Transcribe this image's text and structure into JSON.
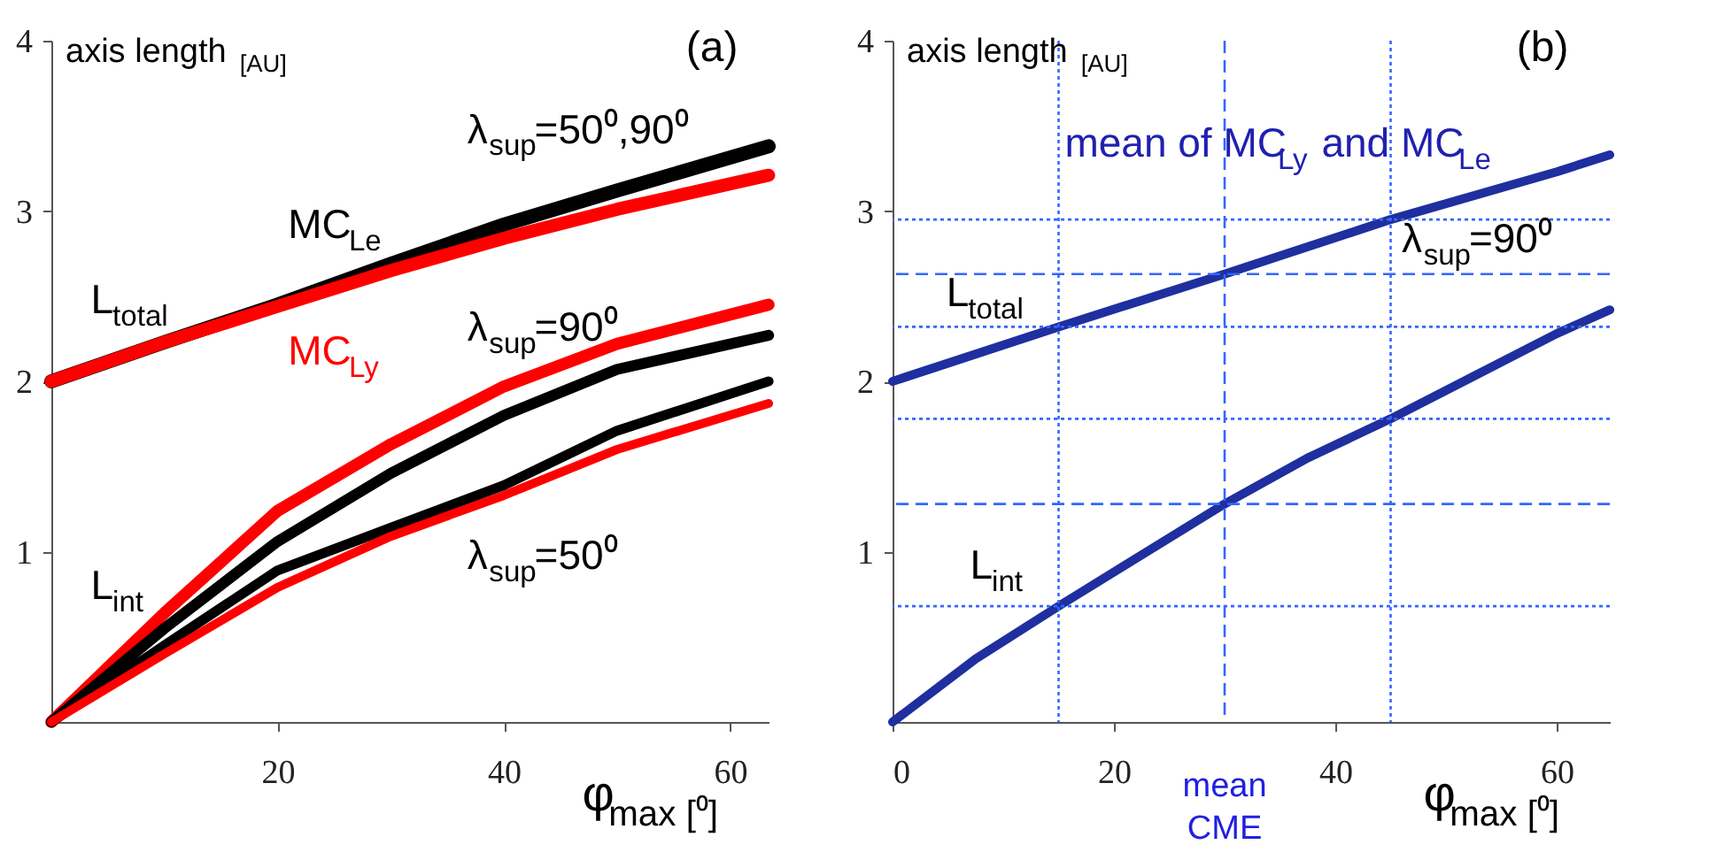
{
  "chart_data": [
    {
      "type": "line",
      "xlabel": "φ$_{max [⁰]}$",
      "ylabel": "axis length $_{[AU]}$",
      "xlim": [
        0,
        63.4
      ],
      "ylim": [
        0,
        4
      ],
      "xticks": [
        20,
        40,
        60
      ],
      "yticks": [
        1,
        2,
        3,
        4
      ],
      "line_style": "solid",
      "marker": "none",
      "series": [
        {
          "color": "#000000",
          "x": [
            0,
            10,
            20,
            30,
            40,
            50,
            63.4
          ],
          "values": [
            2.0,
            2.23,
            2.45,
            2.69,
            2.92,
            3.12,
            3.38
          ]
        },
        {
          "color": "#ff0000",
          "x": [
            0,
            10,
            20,
            30,
            40,
            50,
            63.4
          ],
          "values": [
            2.0,
            2.23,
            2.44,
            2.65,
            2.84,
            3.01,
            3.21
          ]
        },
        {
          "color": "#ff0000",
          "x": [
            0,
            10,
            20,
            30,
            40,
            50,
            63.4
          ],
          "values": [
            0,
            0.64,
            1.24,
            1.63,
            1.97,
            2.22,
            2.45
          ]
        },
        {
          "color": "#000000",
          "x": [
            0,
            10,
            20,
            30,
            40,
            50,
            63.4
          ],
          "values": [
            0,
            0.55,
            1.06,
            1.46,
            1.8,
            2.07,
            2.27
          ]
        },
        {
          "color": "#000000",
          "x": [
            0,
            10,
            20,
            30,
            40,
            50,
            63.4
          ],
          "values": [
            0,
            0.45,
            0.89,
            1.14,
            1.39,
            1.71,
            2.0
          ]
        },
        {
          "color": "#ff0000",
          "x": [
            0,
            10,
            20,
            30,
            40,
            50,
            63.4
          ],
          "values": [
            0,
            0.4,
            0.79,
            1.09,
            1.33,
            1.6,
            1.87
          ]
        }
      ],
      "annotations": [
        "(a)",
        "λ$_{sup}$=50⁰,90⁰",
        "MC$_{Le}$",
        "L$_{total}$",
        "MC$_{Ly}$",
        "λ$_{sup}$=90⁰",
        "λ$_{sup}$=50⁰",
        "L$_{int}$"
      ]
    },
    {
      "type": "line",
      "xlabel": "φ$_{max [⁰]}$",
      "ylabel": "axis length $_{[AU]}$",
      "xlim": [
        0,
        64.8
      ],
      "ylim": [
        0,
        4
      ],
      "xticks": [
        0,
        20,
        40,
        60
      ],
      "yticks": [
        1,
        2,
        3,
        4
      ],
      "line_style": "solid",
      "marker": "none",
      "series": [
        {
          "color": "#1f2f9f",
          "x": [
            0,
            15,
            30,
            45,
            60,
            64.8
          ],
          "values": [
            2.0,
            2.32,
            2.63,
            2.95,
            3.23,
            3.33
          ]
        },
        {
          "color": "#1f2f9f",
          "x": [
            0,
            7.5,
            15,
            22.5,
            30,
            37.5,
            45,
            52.5,
            60,
            64.8
          ],
          "values": [
            0,
            0.37,
            0.68,
            0.98,
            1.28,
            1.55,
            1.78,
            2.03,
            2.28,
            2.42
          ]
        }
      ],
      "ref_lines": [
        {
          "axis": "x",
          "value": 15,
          "color": "#3366ff",
          "line_style": "dotted"
        },
        {
          "axis": "x",
          "value": 30,
          "color": "#3366ff",
          "line_style": "dashed"
        },
        {
          "axis": "x",
          "value": 45,
          "color": "#3366ff",
          "line_style": "dotted"
        },
        {
          "axis": "y",
          "value": 2.95,
          "color": "#3366ff",
          "line_style": "dotted"
        },
        {
          "axis": "y",
          "value": 2.63,
          "color": "#3366ff",
          "line_style": "dashed"
        },
        {
          "axis": "y",
          "value": 2.32,
          "color": "#3366ff",
          "line_style": "dotted"
        },
        {
          "axis": "y",
          "value": 1.78,
          "color": "#3366ff",
          "line_style": "dotted"
        },
        {
          "axis": "y",
          "value": 1.28,
          "color": "#3366ff",
          "line_style": "dashed"
        },
        {
          "axis": "y",
          "value": 0.68,
          "color": "#3366ff",
          "line_style": "dotted"
        }
      ],
      "annotations": [
        "(b)",
        "mean of MC$_{Ly}$ and MC$_{Le}$",
        "λ$_{sup}$=90⁰",
        "L$_{total}$",
        "L$_{int}$",
        "mean CME"
      ]
    }
  ]
}
